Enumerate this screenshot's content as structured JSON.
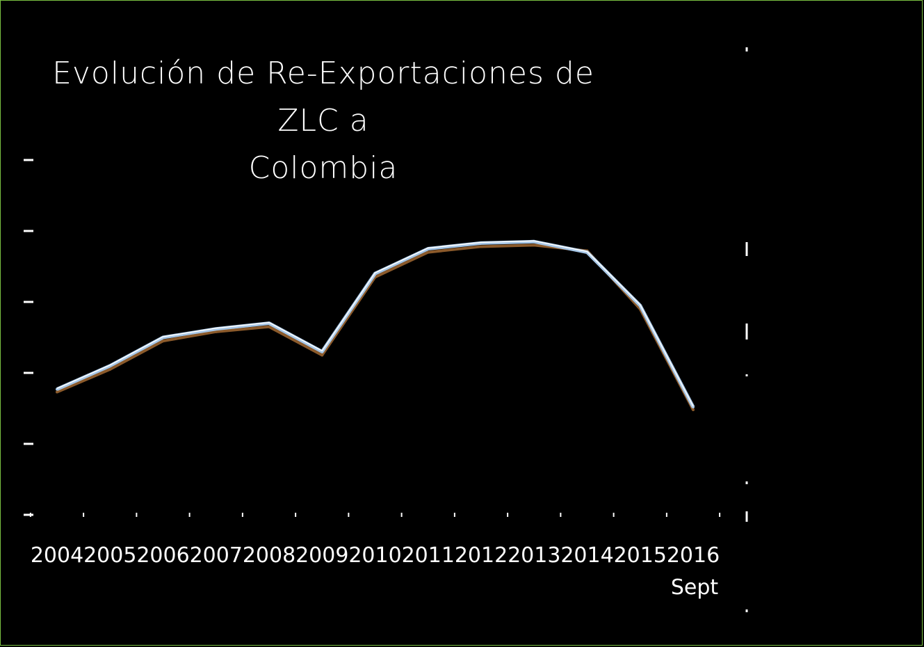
{
  "colors": {
    "background": "#000000",
    "frame": "#7ac142",
    "text": "#ffffff",
    "series_1": "#a8c8e8",
    "series_2": "#8b5a2b",
    "series_2_accent": "#cc2222"
  },
  "chart_data": {
    "type": "line",
    "title": "Evolución de Re-Exportaciones de ZLC a Colombia",
    "title_lines": [
      "Evolución de Re-Exportaciones de ZLC a",
      "Colombia"
    ],
    "categories": [
      "2004",
      "2005",
      "2006",
      "2007",
      "2008",
      "2009",
      "2010",
      "2011",
      "2012",
      "2013",
      "2014",
      "2015",
      "2016"
    ],
    "category_sublabels": [
      "",
      "",
      "",
      "",
      "",
      "",
      "",
      "",
      "",
      "",
      "",
      "",
      "Sept"
    ],
    "xlabel": "",
    "ylabel": "",
    "ylim": [
      0,
      5
    ],
    "grid": false,
    "legend": "none",
    "series": [
      {
        "values": [
          1.77,
          2.1,
          2.5,
          2.62,
          2.7,
          2.3,
          3.4,
          3.75,
          3.83,
          3.85,
          3.7,
          2.95,
          1.52
        ]
      },
      {
        "values": [
          1.73,
          2.05,
          2.45,
          2.58,
          2.65,
          2.25,
          3.35,
          3.7,
          3.78,
          3.8,
          3.72,
          2.9,
          1.48
        ]
      }
    ]
  }
}
